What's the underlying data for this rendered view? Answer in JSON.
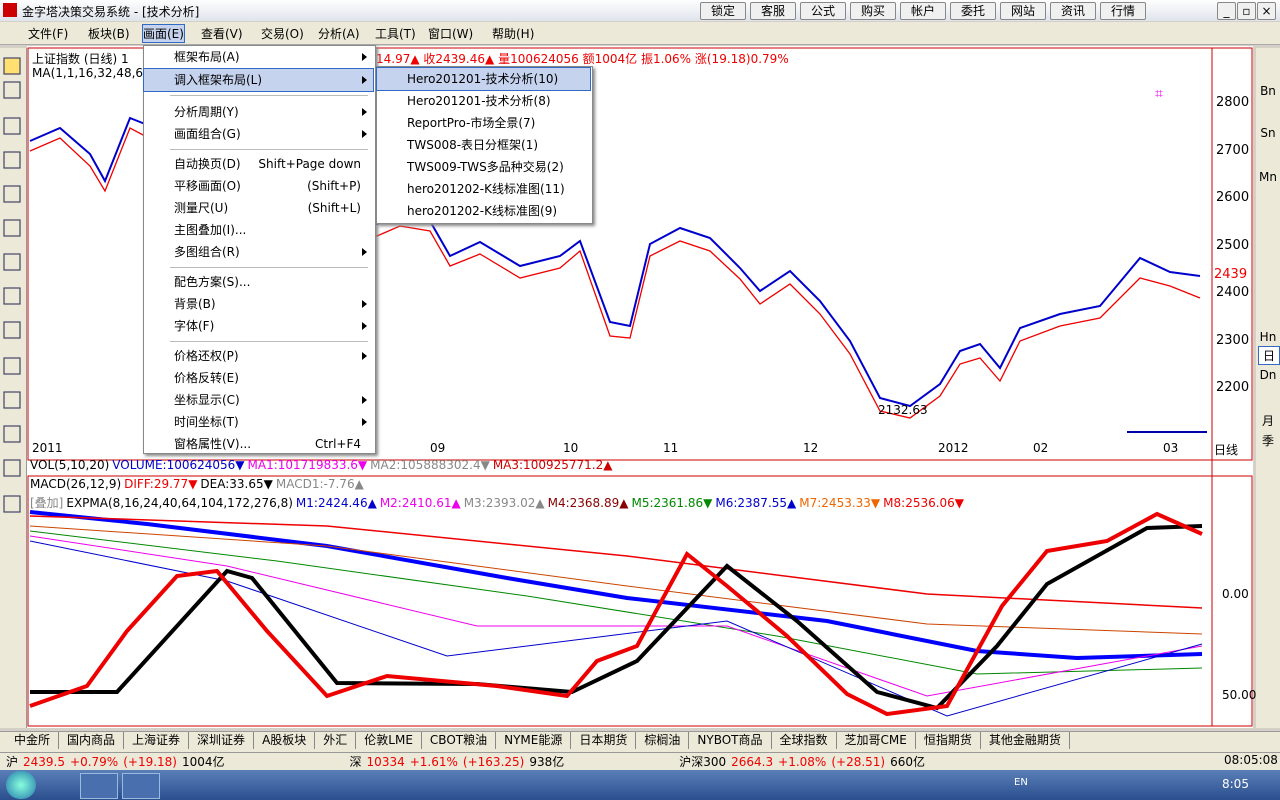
{
  "window": {
    "title": "金字塔决策交易系统 - [技术分析]",
    "buttons": [
      "锁定",
      "客服",
      "公式",
      "购买",
      "帐户",
      "委托",
      "网站",
      "资讯",
      "行情"
    ]
  },
  "menubar": [
    "文件(F)",
    "板块(B)",
    "画面(E)",
    "查看(V)",
    "交易(O)",
    "分析(A)",
    "工具(T)",
    "窗口(W)",
    "帮助(H)"
  ],
  "chart": {
    "header": "上证指数 (日线) 1",
    "quote": "14.97▲ 收2439.46▲ 量100624056 额1004亿 振1.06% 涨(19.18)0.79%",
    "ma": "MA(1,1,16,32,48,6",
    "y_labels": [
      "2800",
      "2700",
      "2600",
      "2500",
      "2400",
      "2300",
      "2200"
    ],
    "last_price": "2439",
    "low_label": "2132.63",
    "x_labels": [
      "2011",
      "09",
      "10",
      "11",
      "12",
      "2012",
      "02",
      "03",
      "日线"
    ],
    "right_tools": [
      "Bn",
      "Sn",
      "Mn",
      "Hn",
      "日",
      "Dn",
      "月",
      "季"
    ]
  },
  "volume_line": [
    "VOL(5,10,20)",
    "VOLUME:100624056▼",
    "MA1:101719833.6▼",
    "MA2:105888302.4▼",
    "MA3:100925771.2▲"
  ],
  "macd_line": [
    "MACD(26,12,9)",
    "DIFF:29.77▼",
    "DEA:33.65▼",
    "MACD1:-7.76▲"
  ],
  "expma_line": [
    "[叠加]",
    "EXPMA(8,16,24,40,64,104,172,276,8)",
    "M1:2424.46▲",
    "M2:2410.61▲",
    "M3:2393.02▲",
    "M4:2368.89▲",
    "M5:2361.86▼",
    "M6:2387.55▲",
    "M7:2453.33▼",
    "M8:2536.06▼"
  ],
  "indicator_labels": [
    "0.00",
    "50.00"
  ],
  "menu": {
    "items": [
      "框架布局(A)",
      "调入框架布局(L)",
      "分析周期(Y)",
      "画面组合(G)",
      "自动换页(D)",
      "平移画面(O)",
      "测量尺(U)",
      "主图叠加(I)...",
      "多图组合(R)",
      "配色方案(S)...",
      "背景(B)",
      "字体(F)",
      "价格还权(P)",
      "价格反转(E)",
      "坐标显示(C)",
      "时间坐标(T)",
      "窗格属性(V)..."
    ],
    "shortcuts": [
      "Shift+Page down",
      "(Shift+P)",
      "(Shift+L)",
      "Ctrl+F4"
    ]
  },
  "submenu": [
    "Hero201201-技术分析(10)",
    "Hero201201-技术分析(8)",
    "ReportPro-市场全景(7)",
    "TWS008-表日分框架(1)",
    "TWS009-TWS多品种交易(2)",
    "hero201202-K线标准图(11)",
    "hero201202-K线标准图(9)"
  ],
  "tabs": [
    "中金所",
    "国内商品",
    "上海证券",
    "深圳证券",
    "A股板块",
    "外汇",
    "伦敦LME",
    "CBOT粮油",
    "NYME能源",
    "日本期货",
    "棕榈油",
    "NYBOT商品",
    "全球指数",
    "芝加哥CME",
    "恒指期货",
    "其他金融期货"
  ],
  "status": {
    "sh": [
      "沪",
      "2439.5",
      "+0.79%",
      "(+19.18)",
      "1004亿"
    ],
    "sz": [
      "深",
      "10334",
      "+1.61%",
      "(+163.25)",
      "938亿"
    ],
    "hs300": [
      "沪深300",
      "2664.3",
      "+1.08%",
      "(+28.51)",
      "660亿"
    ],
    "time": "08:05:08"
  },
  "taskbar": {
    "lang": "EN",
    "clock": "8:05"
  }
}
